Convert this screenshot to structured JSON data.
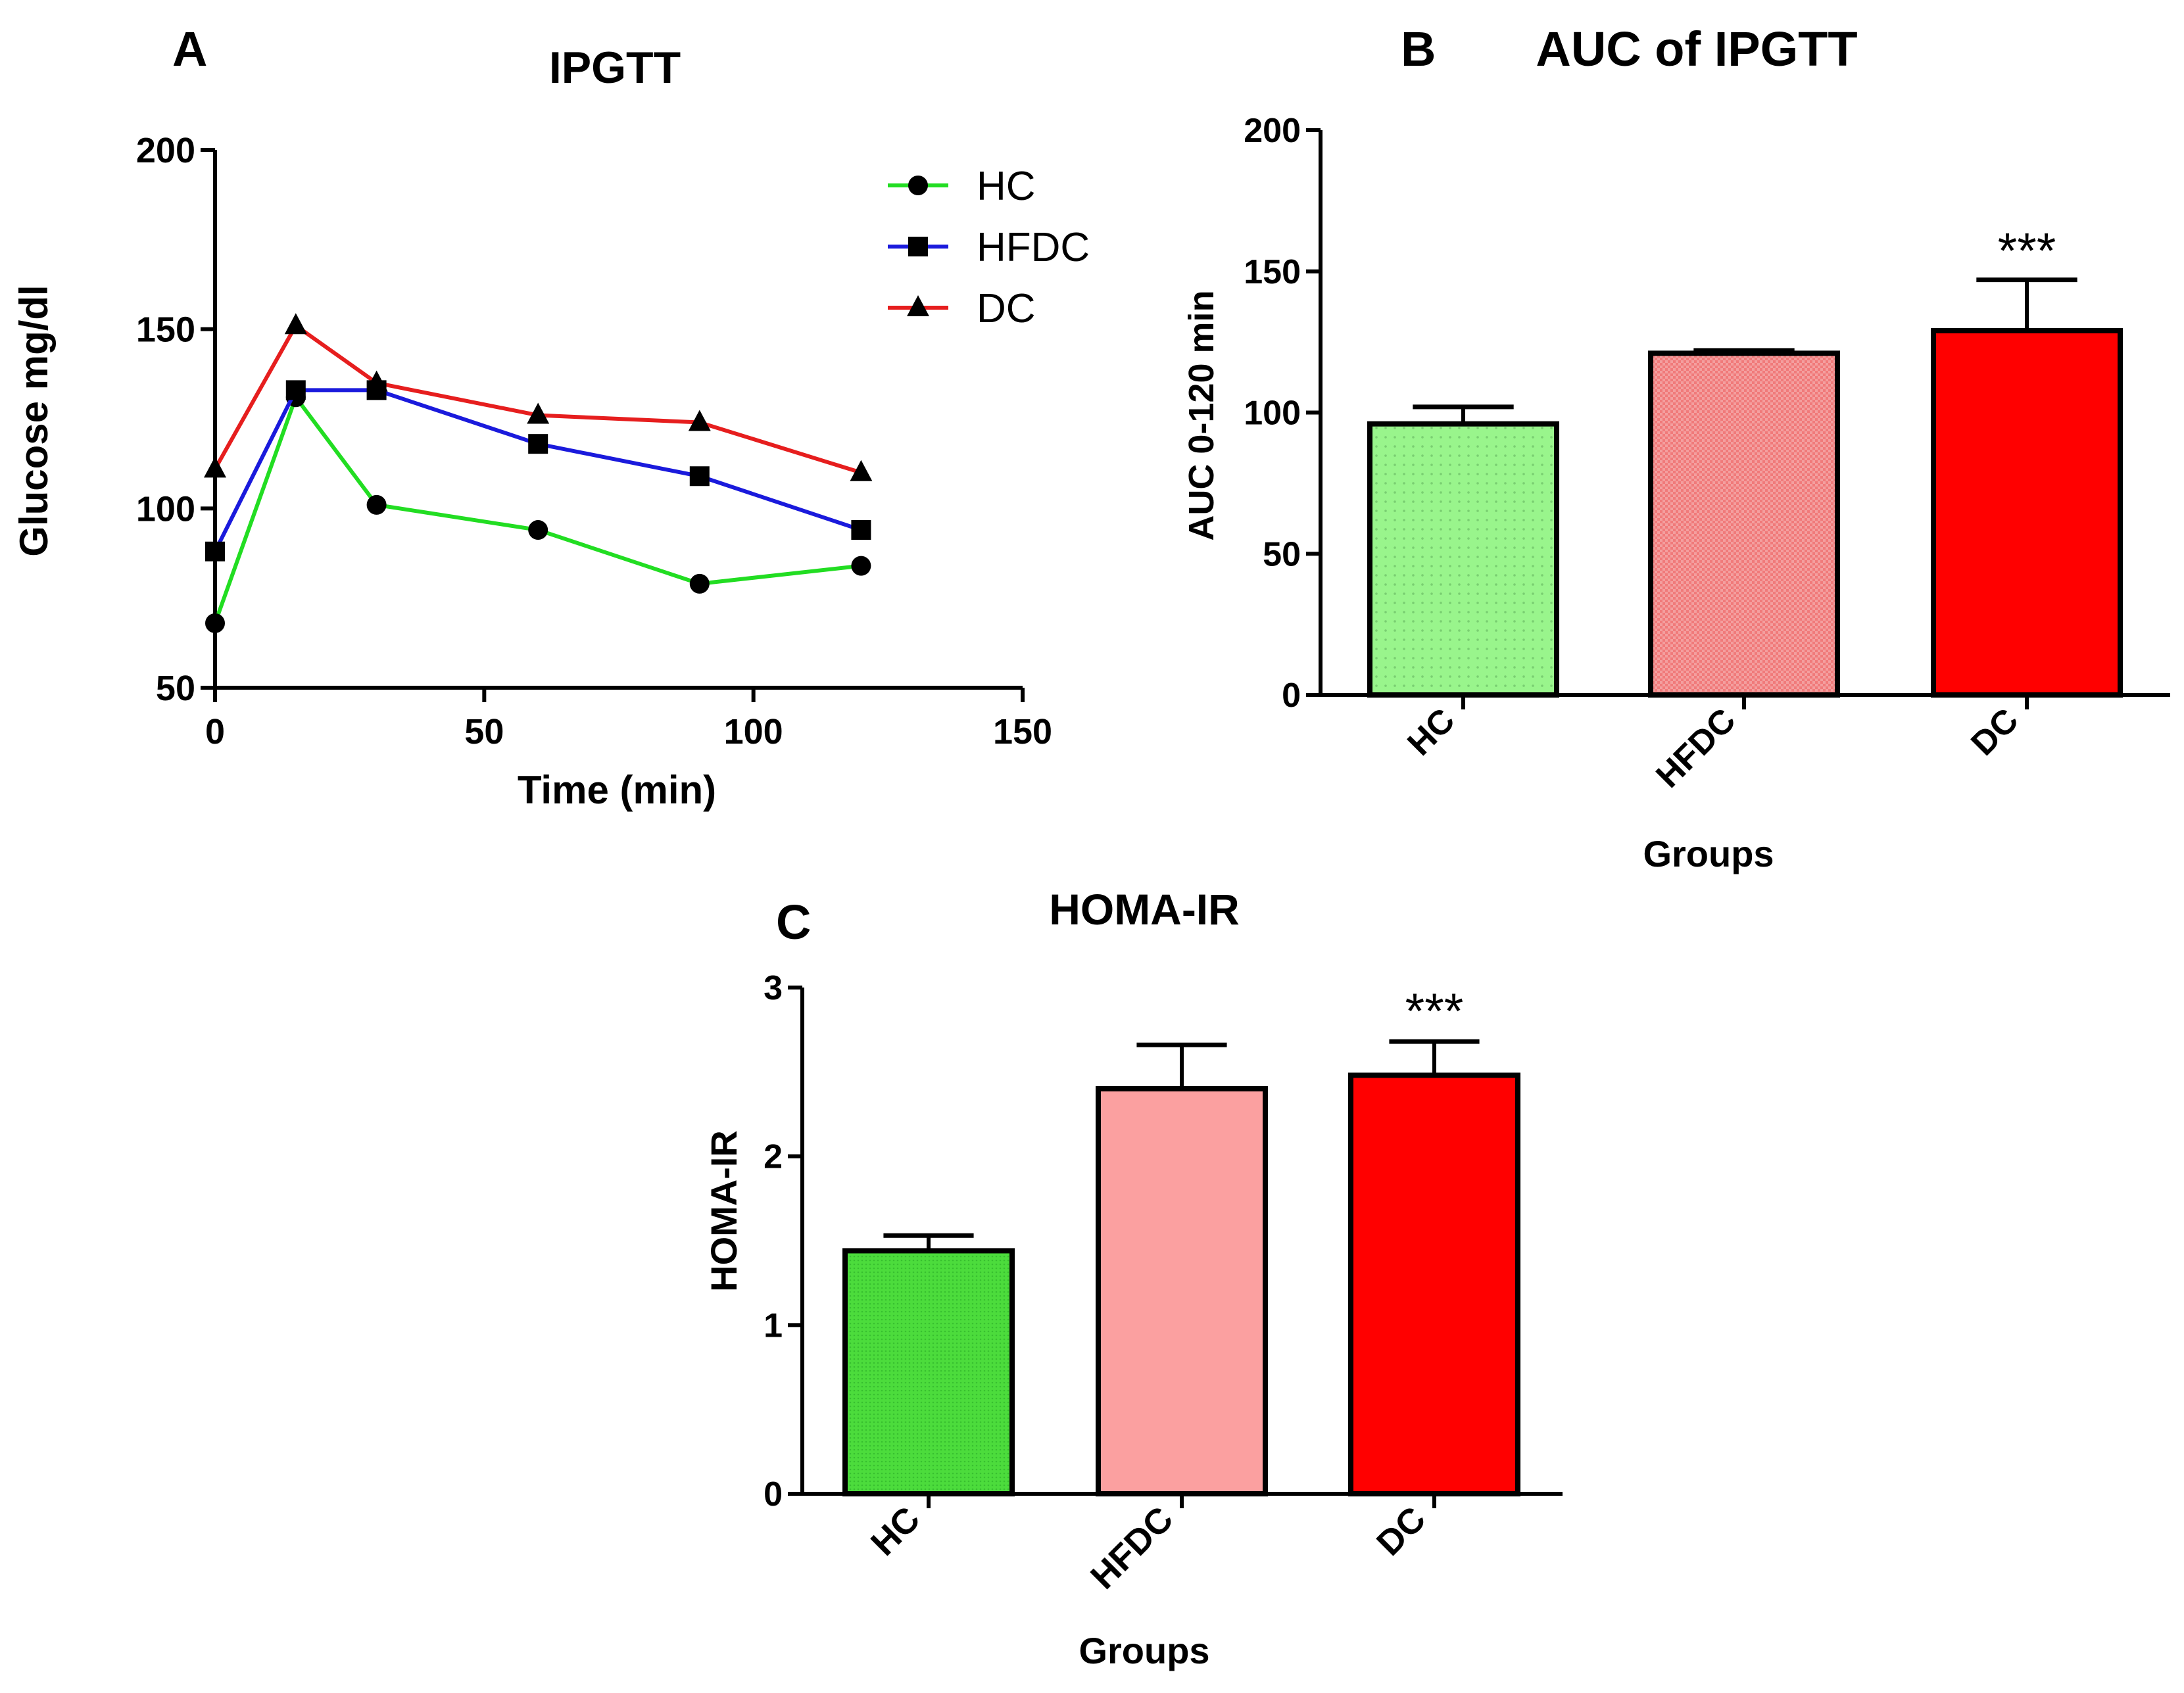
{
  "chart_data": [
    {
      "panel": "A",
      "type": "line",
      "title": "IPGTT",
      "xlabel": "Time (min)",
      "ylabel": "Glucose mg/dl",
      "xlim": [
        0,
        150
      ],
      "ylim": [
        50,
        200
      ],
      "xticks": [
        0,
        50,
        100,
        150
      ],
      "yticks": [
        50,
        100,
        150,
        200
      ],
      "x": [
        0,
        15,
        30,
        60,
        90,
        120
      ],
      "legend_position": "top-right",
      "series": [
        {
          "name": "HC",
          "color": "#22dd22",
          "marker": "circle",
          "values": [
            68,
            131,
            101,
            94,
            79,
            84
          ]
        },
        {
          "name": "HFDC",
          "color": "#1a1adc",
          "marker": "square",
          "values": [
            88,
            133,
            133,
            118,
            109,
            94
          ]
        },
        {
          "name": "DC",
          "color": "#e61e1e",
          "marker": "triangle",
          "values": [
            111,
            151,
            135,
            126,
            124,
            110
          ]
        }
      ]
    },
    {
      "panel": "B",
      "type": "bar",
      "title": "AUC of IPGTT",
      "xlabel": "Groups",
      "ylabel": "AUC 0-120 min",
      "ylim": [
        0,
        200
      ],
      "yticks": [
        0,
        50,
        100,
        150,
        200
      ],
      "categories": [
        "HC",
        "HFDC",
        "DC"
      ],
      "values": [
        96,
        121,
        129
      ],
      "errors": [
        6,
        1,
        18
      ],
      "fills": [
        "#99f58c",
        "#f07a7a",
        "#ff0000"
      ],
      "significance": [
        "",
        "",
        "***"
      ]
    },
    {
      "panel": "C",
      "type": "bar",
      "title": "HOMA-IR",
      "xlabel": "Groups",
      "ylabel": "HOMA-IR",
      "ylim": [
        0,
        3
      ],
      "yticks": [
        0,
        1,
        2,
        3
      ],
      "categories": [
        "HC",
        "HFDC",
        "DC"
      ],
      "values": [
        1.44,
        2.4,
        2.48
      ],
      "errors": [
        0.09,
        0.26,
        0.2
      ],
      "fills": [
        "#4cdc3c",
        "#fba0a0",
        "#ff0000"
      ],
      "significance": [
        "",
        "",
        "***"
      ]
    }
  ]
}
